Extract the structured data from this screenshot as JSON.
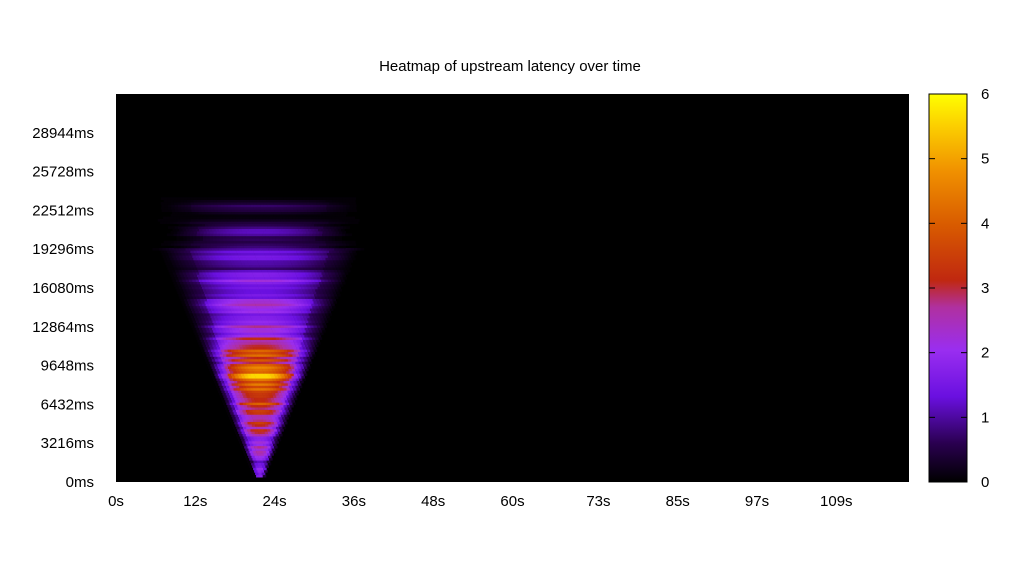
{
  "chart_data": {
    "type": "heatmap",
    "title": "Heatmap of upstream latency over time",
    "xlabel": "",
    "ylabel": "",
    "x_ticks": [
      {
        "label": "0s",
        "value": 0
      },
      {
        "label": "12s",
        "value": 12
      },
      {
        "label": "24s",
        "value": 24
      },
      {
        "label": "36s",
        "value": 36
      },
      {
        "label": "48s",
        "value": 48
      },
      {
        "label": "60s",
        "value": 60
      },
      {
        "label": "73s",
        "value": 73
      },
      {
        "label": "85s",
        "value": 85
      },
      {
        "label": "97s",
        "value": 97
      },
      {
        "label": "109s",
        "value": 109
      }
    ],
    "y_ticks": [
      {
        "label": "0ms",
        "value": 0
      },
      {
        "label": "3216ms",
        "value": 3216
      },
      {
        "label": "6432ms",
        "value": 6432
      },
      {
        "label": "9648ms",
        "value": 9648
      },
      {
        "label": "12864ms",
        "value": 12864
      },
      {
        "label": "16080ms",
        "value": 16080
      },
      {
        "label": "19296ms",
        "value": 19296
      },
      {
        "label": "22512ms",
        "value": 22512
      },
      {
        "label": "25728ms",
        "value": 25728
      },
      {
        "label": "28944ms",
        "value": 28944
      }
    ],
    "xlim": [
      0,
      120
    ],
    "ylim": [
      0,
      32160
    ],
    "colorbar": {
      "range": [
        0,
        6
      ],
      "ticks": [
        "0",
        "1",
        "2",
        "3",
        "4",
        "5",
        "6"
      ],
      "palette": "black-purple-red-orange-yellow"
    },
    "background_color": "#000000",
    "hot_region": {
      "description_x_range_s": [
        3.5,
        41
      ],
      "description_y_range_ms": [
        400,
        23500
      ],
      "peak_x_s": 21.5,
      "peak_y_ms": 8300,
      "peak_value": 5.2
    }
  }
}
